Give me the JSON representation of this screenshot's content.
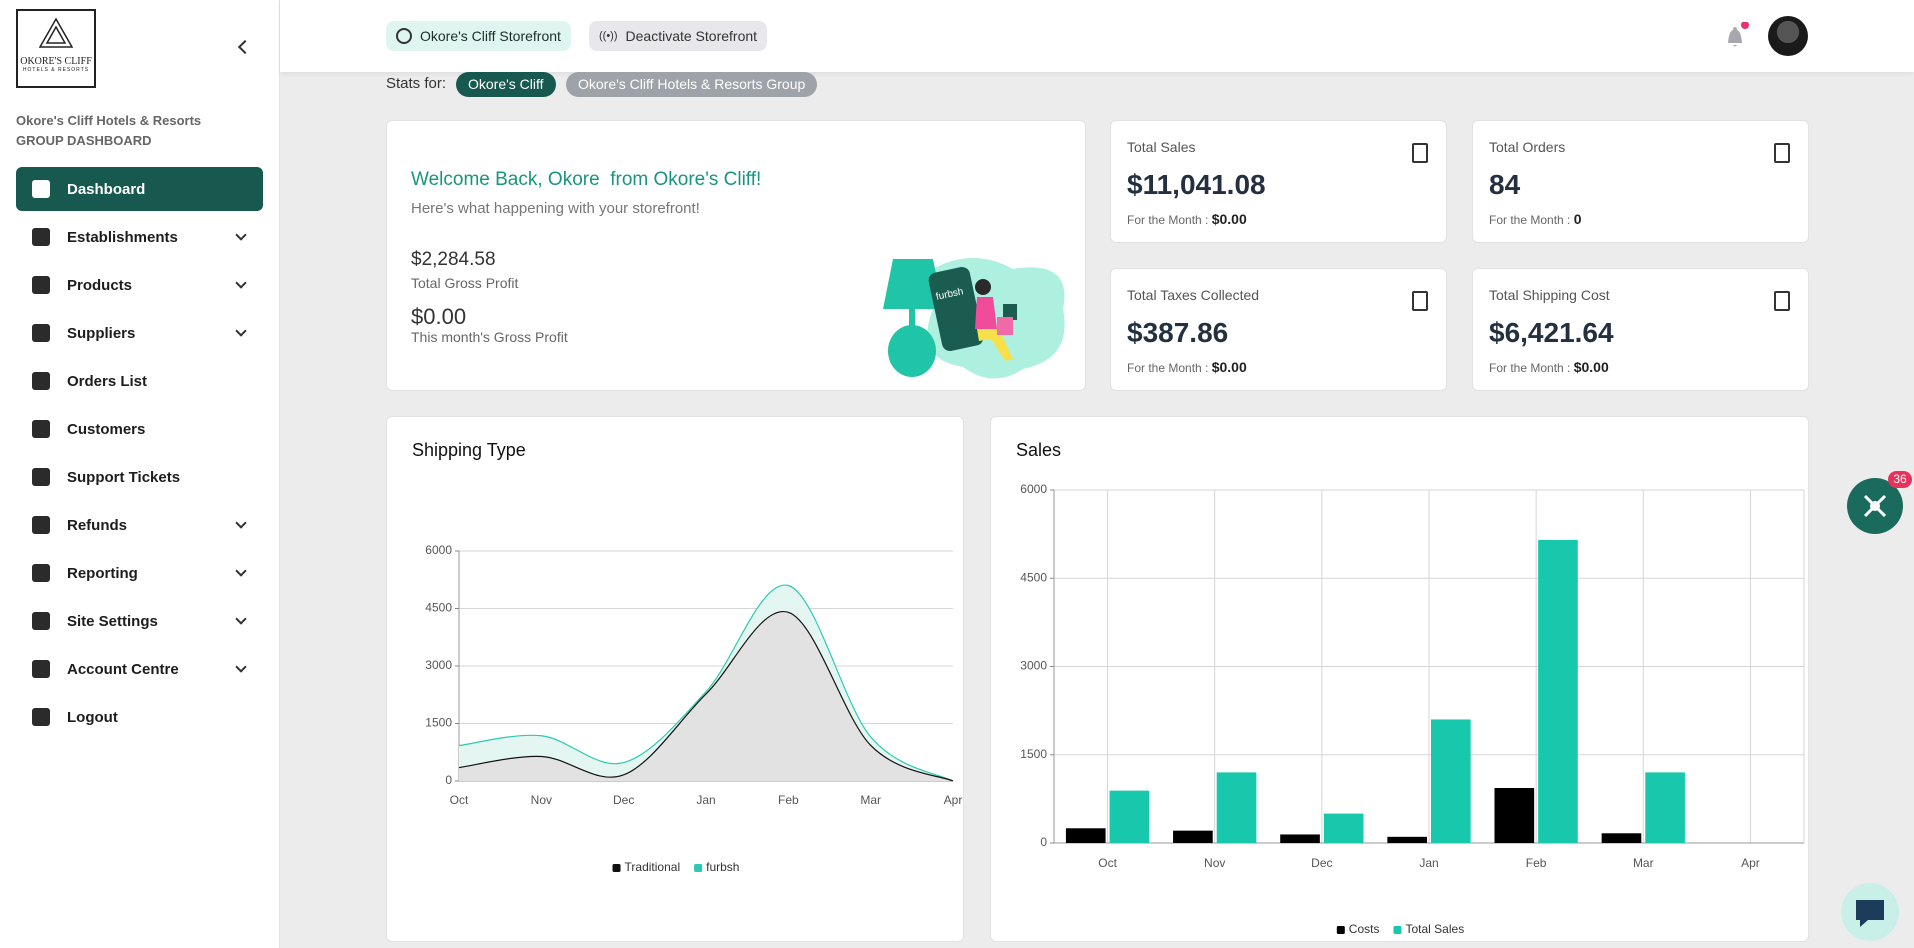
{
  "sidebar": {
    "brand_line1": "OKORE'S CLIFF",
    "brand_line2": "HOTELS & RESORTS",
    "org": "Okore's Cliff Hotels & Resorts",
    "dashboard_label": "GROUP DASHBOARD",
    "nav": [
      "Dashboard",
      "Establishments",
      "Products",
      "Suppliers",
      "Orders List",
      "Customers",
      "Support Tickets",
      "Refunds",
      "Reporting",
      "Site Settings",
      "Account Centre",
      "Logout"
    ]
  },
  "header": {
    "storefront": "Okore's Cliff Storefront",
    "deactivate": "Deactivate Storefront"
  },
  "stats_for": {
    "label": "Stats for:",
    "options": [
      "Okore's Cliff",
      "Okore's Cliff Hotels & Resorts Group"
    ]
  },
  "welcome": {
    "title": "Welcome Back, Okore  from Okore's Cliff!",
    "subtitle": "Here's what happening with your storefront!",
    "gross_profit": "$2,284.58",
    "gross_profit_label": "Total Gross Profit",
    "month_profit": "$0.00",
    "month_profit_label": "This month's Gross Profit",
    "illustration_text": "furbsh"
  },
  "cards": [
    {
      "title": "Total Sales",
      "value": "$11,041.08",
      "sub_label": "For the Month :",
      "sub_value": "$0.00"
    },
    {
      "title": "Total Orders",
      "value": "84",
      "sub_label": "For the Month :",
      "sub_value": "0"
    },
    {
      "title": "Total Taxes Collected",
      "value": "$387.86",
      "sub_label": "For the Month :",
      "sub_value": "$0.00"
    },
    {
      "title": "Total Shipping Cost",
      "value": "$6,421.64",
      "sub_label": "For the Month :",
      "sub_value": "$0.00"
    }
  ],
  "badge": "36",
  "chart_data": [
    {
      "type": "line",
      "title": "Shipping Type",
      "categories": [
        "Oct",
        "Nov",
        "Dec",
        "Jan",
        "Feb",
        "Mar",
        "Apr"
      ],
      "series": [
        {
          "name": "furbsh",
          "color": "#2cc9b2",
          "fill": "#e4f6f2",
          "values": [
            925,
            1180,
            480,
            2330,
            5100,
            1150,
            0
          ]
        },
        {
          "name": "Traditional",
          "color": "#111111",
          "fill": "#e2e2e2",
          "values": [
            350,
            640,
            160,
            2270,
            4400,
            930,
            0
          ]
        }
      ],
      "ylim": [
        0,
        6000
      ],
      "yticks": [
        0,
        1500,
        3000,
        4500,
        6000
      ],
      "grid": true,
      "xgrid": false,
      "smooth": true,
      "legend": "bottom"
    },
    {
      "type": "bar",
      "title": "Sales",
      "categories": [
        "Oct",
        "Nov",
        "Dec",
        "Jan",
        "Feb",
        "Mar",
        "Apr"
      ],
      "series": [
        {
          "name": "Costs",
          "color": "#000000",
          "values": [
            250,
            210,
            145,
            105,
            935,
            165,
            0
          ]
        },
        {
          "name": "Total Sales",
          "color": "#17c8ad",
          "values": [
            890,
            1200,
            500,
            2100,
            5150,
            1200,
            0
          ]
        }
      ],
      "ylim": [
        0,
        6000
      ],
      "yticks": [
        0,
        1500,
        3000,
        4500,
        6000
      ],
      "grid": true,
      "xgrid": true,
      "legend": "bottom"
    }
  ]
}
